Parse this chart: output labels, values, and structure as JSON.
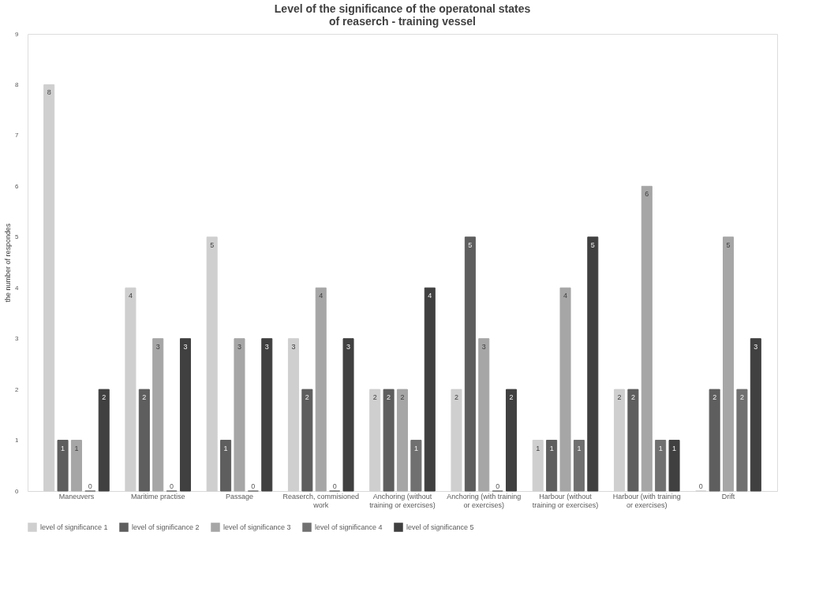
{
  "chart_data": {
    "type": "bar",
    "title": [
      "Level of the significance of the operatonal states",
      "of reaserch - training vessel"
    ],
    "ylabel": "the number of respondes",
    "categories": [
      "Maneuvers",
      "Maritime practise",
      "Passage",
      "Reaserch, commisioned work",
      "Anchoring (without training or exercises)",
      "Anchoring (with training or exercises)",
      "Harbour (without training or exercises)",
      "Harbour (with training or exercises)",
      "Drift"
    ],
    "series": [
      {
        "name": "level of significance 1",
        "color": "#cfcfcf",
        "values": [
          8,
          4,
          5,
          3,
          2,
          2,
          1,
          2,
          0
        ]
      },
      {
        "name": "level of significance 2",
        "color": "#5e5e5e",
        "values": [
          1,
          2,
          1,
          2,
          2,
          5,
          1,
          2,
          2
        ]
      },
      {
        "name": "level of significance 3",
        "color": "#a6a6a6",
        "values": [
          1,
          3,
          3,
          4,
          2,
          3,
          4,
          6,
          5
        ]
      },
      {
        "name": "level of significance 4",
        "color": "#707070",
        "values": [
          0,
          0,
          0,
          0,
          1,
          0,
          1,
          1,
          2
        ]
      },
      {
        "name": "level of significance 5",
        "color": "#404040",
        "values": [
          2,
          3,
          3,
          3,
          4,
          2,
          5,
          1,
          3
        ]
      }
    ],
    "ylim": [
      0,
      9
    ],
    "yticks": [
      0,
      1,
      2,
      3,
      4,
      5,
      6,
      7,
      8,
      9
    ],
    "grid": false,
    "legend": "bottom",
    "data_labels": true
  }
}
